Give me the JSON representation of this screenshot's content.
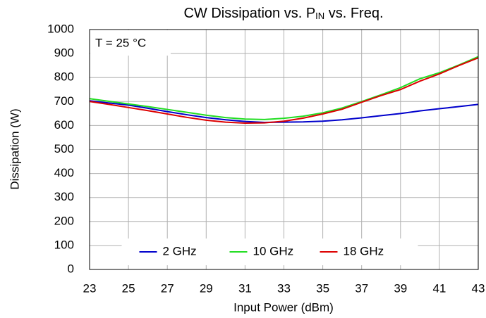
{
  "chart_data": {
    "type": "line",
    "title": [
      "CW Dissipation vs. P",
      "IN",
      " vs. Freq."
    ],
    "annotation": "T = 25 °C",
    "xlabel": "Input Power (dBm)",
    "ylabel": "Dissipation (W)",
    "x": [
      23,
      24,
      25,
      26,
      27,
      28,
      29,
      30,
      31,
      32,
      33,
      34,
      35,
      36,
      37,
      38,
      39,
      40,
      41,
      42,
      43
    ],
    "series": [
      {
        "name": "2 GHz",
        "color": "#0000cc",
        "values": [
          703,
          694,
          685,
          672,
          658,
          645,
          633,
          624,
          617,
          613,
          614,
          615,
          618,
          624,
          632,
          641,
          650,
          661,
          670,
          679,
          688
        ]
      },
      {
        "name": "10 GHz",
        "color": "#22dd22",
        "values": [
          712,
          701,
          690,
          679,
          667,
          655,
          643,
          633,
          627,
          625,
          630,
          639,
          653,
          673,
          700,
          728,
          758,
          795,
          820,
          852,
          887
        ]
      },
      {
        "name": "18 GHz",
        "color": "#dd0000",
        "values": [
          700,
          688,
          675,
          662,
          648,
          634,
          622,
          614,
          610,
          611,
          618,
          631,
          648,
          668,
          697,
          725,
          750,
          785,
          815,
          850,
          882
        ]
      }
    ],
    "xlim": [
      23,
      43
    ],
    "xticks": [
      23,
      25,
      27,
      29,
      31,
      33,
      35,
      37,
      39,
      41,
      43
    ],
    "ylim": [
      0,
      1000
    ],
    "yticks": [
      0,
      100,
      200,
      300,
      400,
      500,
      600,
      700,
      800,
      900,
      1000
    ],
    "grid": true,
    "legend": "lower center"
  }
}
